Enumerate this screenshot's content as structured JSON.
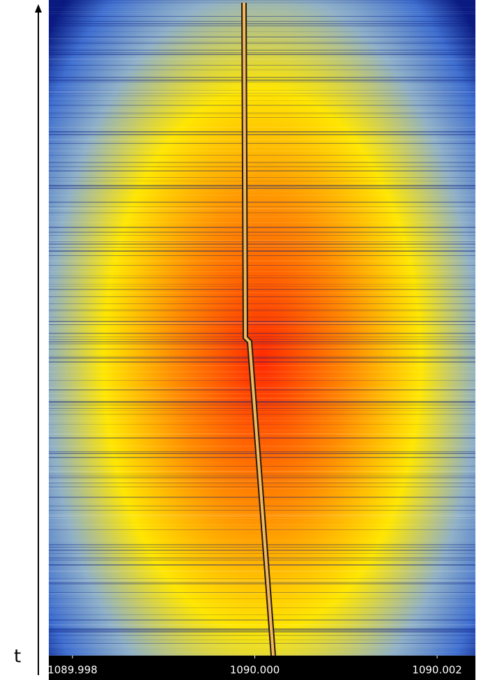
{
  "chart_data": {
    "type": "spectrogram",
    "y_label": "t",
    "xlim": [
      1089.99774,
      1090.00242
    ],
    "xticks": [
      {
        "value": 1089.998,
        "label": "1089.998"
      },
      {
        "value": 1090.0,
        "label": "1090.000"
      },
      {
        "value": 1090.002,
        "label": "1090.002"
      }
    ]
  }
}
